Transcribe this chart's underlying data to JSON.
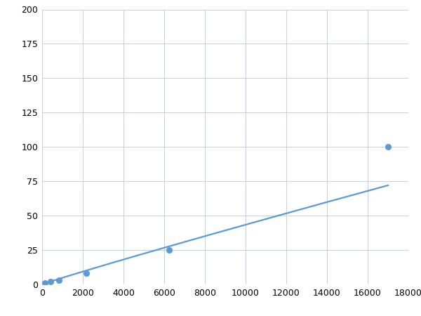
{
  "x_points": [
    137,
    411,
    823,
    2160,
    6250,
    17000
  ],
  "y_points": [
    1.0,
    2.0,
    3.0,
    8.0,
    25.0,
    100.0
  ],
  "line_color": "#5b9bd5",
  "marker_color": "#5b9bd5",
  "marker_size": 6,
  "line_width": 1.6,
  "xlim": [
    0,
    18000
  ],
  "ylim": [
    0,
    200
  ],
  "xticks": [
    0,
    2000,
    4000,
    6000,
    8000,
    10000,
    12000,
    14000,
    16000,
    18000
  ],
  "yticks": [
    0,
    25,
    50,
    75,
    100,
    125,
    150,
    175,
    200
  ],
  "grid_color": "#c8d0d8",
  "plot_background": "#ffffff",
  "figure_background": "#ffffff"
}
